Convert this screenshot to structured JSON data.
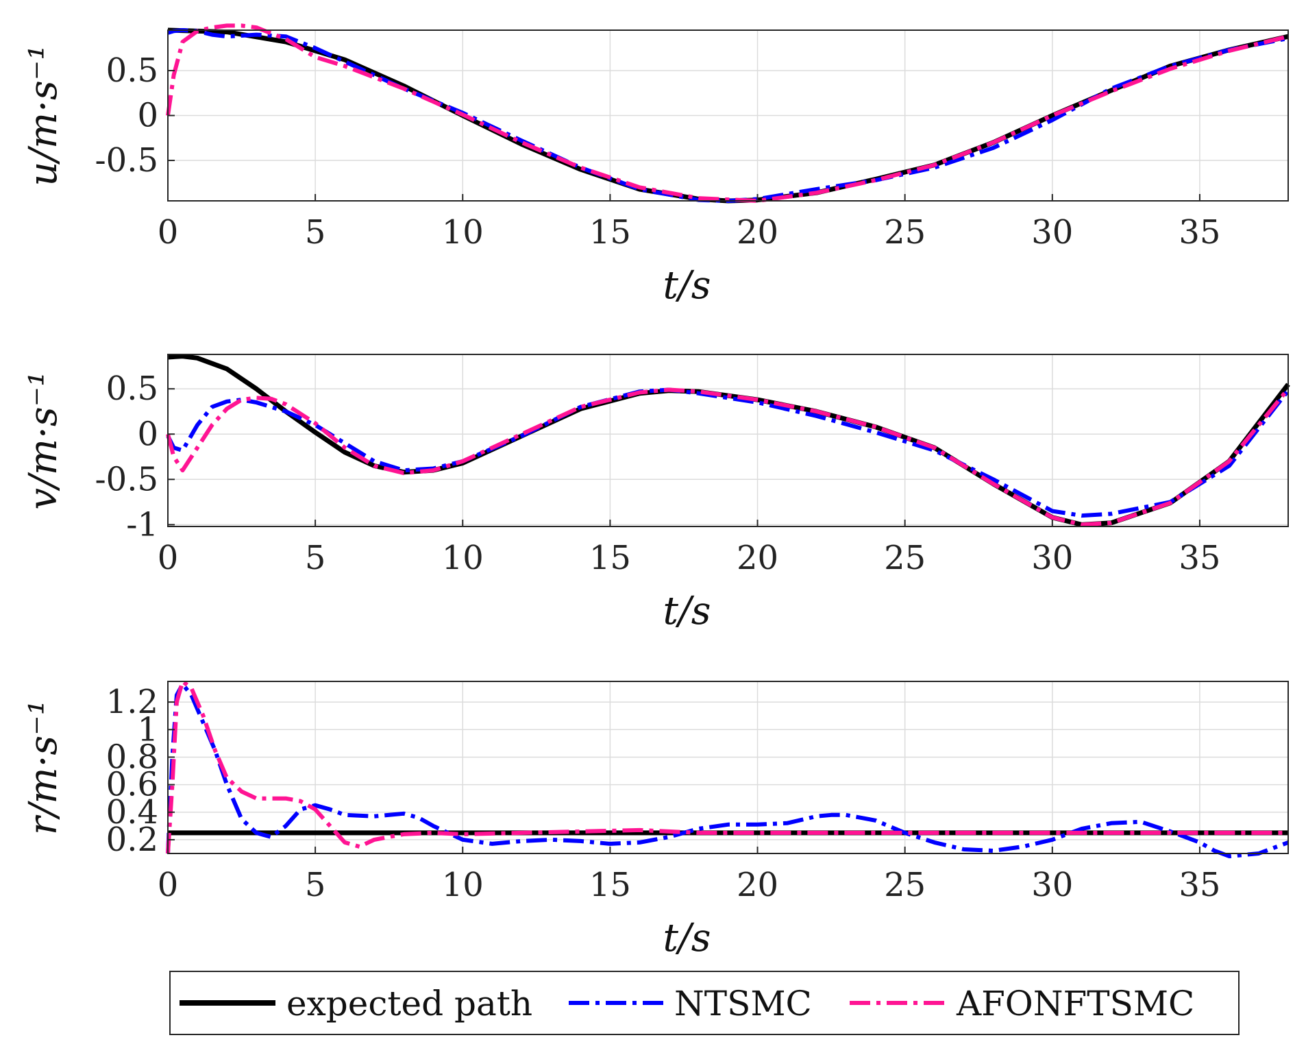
{
  "chart_data": [
    {
      "type": "line",
      "id": "u",
      "xlabel": "t/s",
      "ylabel": "u/m·s⁻¹",
      "xlim": [
        0,
        38
      ],
      "ylim": [
        -0.95,
        0.95
      ],
      "xticks": [
        "0",
        "5",
        "10",
        "15",
        "20",
        "25",
        "30",
        "35"
      ],
      "yticks": [
        {
          "v": 0.5,
          "label": "0.5"
        },
        {
          "v": 0,
          "label": "0"
        },
        {
          "v": -0.5,
          "label": "-0.5"
        }
      ],
      "grid": true,
      "series": [
        {
          "key": "expected",
          "x": [
            0,
            2,
            4,
            6,
            8,
            10,
            12,
            14,
            16,
            18,
            19,
            20,
            22,
            24,
            26,
            28,
            30,
            32,
            34,
            36,
            38
          ],
          "y": [
            0.95,
            0.93,
            0.82,
            0.62,
            0.33,
            0.0,
            -0.32,
            -0.6,
            -0.82,
            -0.93,
            -0.95,
            -0.94,
            -0.86,
            -0.71,
            -0.55,
            -0.3,
            0.0,
            0.28,
            0.55,
            0.73,
            0.88
          ]
        },
        {
          "key": "ntsmc",
          "x": [
            0,
            0.2,
            0.5,
            1,
            1.5,
            2,
            3,
            4,
            5,
            6,
            8,
            10,
            12,
            14,
            16,
            18,
            19,
            20,
            22,
            24,
            26,
            28,
            30,
            32,
            34,
            36,
            38
          ],
          "y": [
            0.92,
            0.94,
            0.95,
            0.94,
            0.9,
            0.88,
            0.9,
            0.88,
            0.75,
            0.6,
            0.3,
            0.03,
            -0.28,
            -0.58,
            -0.82,
            -0.94,
            -0.95,
            -0.93,
            -0.82,
            -0.72,
            -0.58,
            -0.36,
            -0.05,
            0.3,
            0.55,
            0.73,
            0.86
          ]
        },
        {
          "key": "afonftsmc",
          "x": [
            0,
            0.2,
            0.5,
            1,
            1.5,
            2,
            2.5,
            3,
            4,
            5,
            6,
            8,
            10,
            12,
            14,
            16,
            18,
            20,
            22,
            24,
            26,
            28,
            30,
            32,
            34,
            36,
            38
          ],
          "y": [
            0.0,
            0.45,
            0.82,
            0.94,
            0.98,
            1.0,
            1.0,
            0.98,
            0.85,
            0.65,
            0.55,
            0.3,
            0.01,
            -0.3,
            -0.58,
            -0.8,
            -0.92,
            -0.95,
            -0.86,
            -0.72,
            -0.55,
            -0.3,
            0.0,
            0.27,
            0.52,
            0.72,
            0.88
          ]
        }
      ]
    },
    {
      "type": "line",
      "id": "v",
      "xlabel": "t/s",
      "ylabel": "v/m·s⁻¹",
      "xlim": [
        0,
        38
      ],
      "ylim": [
        -1.02,
        0.88
      ],
      "xticks": [
        "0",
        "5",
        "10",
        "15",
        "20",
        "25",
        "30",
        "35"
      ],
      "yticks": [
        {
          "v": 0.5,
          "label": "0.5"
        },
        {
          "v": 0,
          "label": "0"
        },
        {
          "v": -0.5,
          "label": "-0.5"
        },
        {
          "v": -1,
          "label": "-1"
        }
      ],
      "grid": true,
      "series": [
        {
          "key": "expected",
          "x": [
            0,
            0.5,
            1,
            2,
            3,
            4,
            5,
            6,
            7,
            8,
            9,
            10,
            12,
            14,
            16,
            17,
            18,
            20,
            22,
            24,
            26,
            28,
            30,
            31,
            32,
            34,
            36,
            38
          ],
          "y": [
            0.85,
            0.86,
            0.84,
            0.72,
            0.5,
            0.25,
            0.02,
            -0.2,
            -0.35,
            -0.42,
            -0.4,
            -0.32,
            -0.02,
            0.28,
            0.45,
            0.48,
            0.47,
            0.38,
            0.25,
            0.08,
            -0.15,
            -0.55,
            -0.92,
            -1.0,
            -0.98,
            -0.76,
            -0.3,
            0.55
          ]
        },
        {
          "key": "ntsmc",
          "x": [
            0,
            0.2,
            0.5,
            1,
            1.5,
            2,
            2.5,
            3,
            4,
            5,
            6,
            7,
            8,
            9,
            10,
            12,
            14,
            16,
            17,
            18,
            20,
            22,
            24,
            26,
            28,
            30,
            31,
            32,
            34,
            36,
            38
          ],
          "y": [
            -0.02,
            -0.15,
            -0.18,
            0.1,
            0.3,
            0.36,
            0.38,
            0.35,
            0.25,
            0.1,
            -0.1,
            -0.3,
            -0.4,
            -0.38,
            -0.3,
            -0.02,
            0.3,
            0.47,
            0.49,
            0.45,
            0.35,
            0.2,
            0.02,
            -0.18,
            -0.5,
            -0.85,
            -0.9,
            -0.88,
            -0.75,
            -0.35,
            0.48
          ]
        },
        {
          "key": "afonftsmc",
          "x": [
            0,
            0.2,
            0.5,
            1,
            1.5,
            2,
            2.5,
            3,
            3.5,
            4,
            5,
            6,
            7,
            8,
            9,
            10,
            12,
            14,
            16,
            17,
            18,
            20,
            22,
            24,
            26,
            28,
            30,
            31,
            32,
            34,
            36,
            38
          ],
          "y": [
            0.0,
            -0.25,
            -0.4,
            -0.15,
            0.1,
            0.28,
            0.38,
            0.4,
            0.39,
            0.33,
            0.12,
            -0.15,
            -0.35,
            -0.43,
            -0.4,
            -0.3,
            0.0,
            0.3,
            0.46,
            0.49,
            0.47,
            0.38,
            0.25,
            0.08,
            -0.15,
            -0.55,
            -0.92,
            -1.0,
            -0.98,
            -0.76,
            -0.3,
            0.5
          ]
        }
      ]
    },
    {
      "type": "line",
      "id": "r",
      "xlabel": "t/s",
      "ylabel": "r/m·s⁻¹",
      "xlim": [
        0,
        38
      ],
      "ylim": [
        0.1,
        1.35
      ],
      "xticks": [
        "0",
        "5",
        "10",
        "15",
        "20",
        "25",
        "30",
        "35"
      ],
      "yticks": [
        {
          "v": 1.2,
          "label": "1.2"
        },
        {
          "v": 1.0,
          "label": "1"
        },
        {
          "v": 0.8,
          "label": "0.8"
        },
        {
          "v": 0.6,
          "label": "0.6"
        },
        {
          "v": 0.4,
          "label": "0.4"
        },
        {
          "v": 0.2,
          "label": "0.2"
        }
      ],
      "grid": true,
      "series": [
        {
          "key": "expected",
          "x": [
            0,
            38
          ],
          "y": [
            0.25,
            0.25
          ]
        },
        {
          "key": "ntsmc",
          "x": [
            0,
            0.15,
            0.3,
            0.5,
            0.8,
            1.2,
            1.6,
            2,
            2.5,
            3,
            3.5,
            4,
            4.5,
            5,
            5.5,
            6,
            7,
            8,
            8.5,
            9,
            10,
            11,
            12,
            13,
            14,
            15,
            16,
            17,
            18,
            19,
            20,
            21,
            22,
            22.5,
            23,
            24,
            25,
            26,
            27,
            28,
            29,
            30,
            31,
            32,
            33,
            34,
            35,
            35.5,
            36,
            37,
            38
          ],
          "y": [
            0.1,
            0.8,
            1.25,
            1.33,
            1.25,
            1.05,
            0.85,
            0.6,
            0.35,
            0.25,
            0.22,
            0.3,
            0.42,
            0.45,
            0.42,
            0.38,
            0.37,
            0.39,
            0.36,
            0.3,
            0.2,
            0.17,
            0.19,
            0.2,
            0.19,
            0.17,
            0.18,
            0.22,
            0.28,
            0.31,
            0.31,
            0.32,
            0.37,
            0.38,
            0.38,
            0.34,
            0.25,
            0.18,
            0.13,
            0.12,
            0.15,
            0.2,
            0.28,
            0.32,
            0.33,
            0.26,
            0.18,
            0.12,
            0.08,
            0.1,
            0.18
          ]
        },
        {
          "key": "afonftsmc",
          "x": [
            0,
            0.15,
            0.3,
            0.5,
            0.8,
            1.2,
            1.6,
            2,
            2.5,
            3,
            3.5,
            4,
            4.5,
            5,
            5.5,
            6,
            6.5,
            7,
            8,
            9,
            10,
            12,
            14,
            16,
            18,
            20,
            25,
            30,
            35,
            38
          ],
          "y": [
            0.1,
            0.6,
            1.2,
            1.35,
            1.3,
            1.1,
            0.85,
            0.65,
            0.55,
            0.5,
            0.5,
            0.5,
            0.48,
            0.42,
            0.3,
            0.18,
            0.15,
            0.2,
            0.24,
            0.25,
            0.24,
            0.25,
            0.26,
            0.27,
            0.25,
            0.25,
            0.25,
            0.25,
            0.25,
            0.25
          ]
        }
      ]
    }
  ],
  "legend": {
    "entries": [
      {
        "key": "expected",
        "label": "expected path"
      },
      {
        "key": "ntsmc",
        "label": "NTSMC"
      },
      {
        "key": "afonftsmc",
        "label": "AFONFTSMC"
      }
    ]
  },
  "styles": {
    "expected": {
      "color": "#000000",
      "dash": ""
    },
    "ntsmc": {
      "color": "#0000ff",
      "dash": "30 9 6 9"
    },
    "afonftsmc": {
      "color": "#ff1493",
      "dash": "30 9 6 9"
    }
  }
}
